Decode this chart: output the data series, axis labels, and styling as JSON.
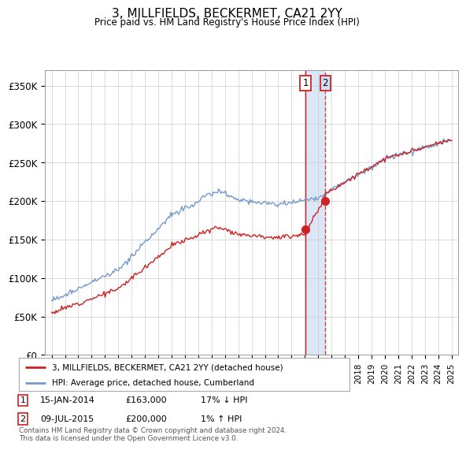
{
  "title": "3, MILLFIELDS, BECKERMET, CA21 2YY",
  "subtitle": "Price paid vs. HM Land Registry's House Price Index (HPI)",
  "ylim": [
    0,
    370000
  ],
  "yticks": [
    0,
    50000,
    100000,
    150000,
    200000,
    250000,
    300000,
    350000
  ],
  "ytick_labels": [
    "£0",
    "£50K",
    "£100K",
    "£150K",
    "£200K",
    "£250K",
    "£300K",
    "£350K"
  ],
  "sale1_date_num": 2014.04,
  "sale1_price": 163000,
  "sale2_date_num": 2015.53,
  "sale2_price": 200000,
  "sale1_text": "15-JAN-2014",
  "sale1_price_text": "£163,000",
  "sale1_hpi_text": "17% ↓ HPI",
  "sale2_text": "09-JUL-2015",
  "sale2_price_text": "£200,000",
  "sale2_hpi_text": "1% ↑ HPI",
  "hpi_line_color": "#7799cc",
  "price_line_color": "#cc2222",
  "vline1_color": "#cc2222",
  "vline2_color": "#cc4444",
  "shade_color": "#ccddf5",
  "legend_label_red": "3, MILLFIELDS, BECKERMET, CA21 2YY (detached house)",
  "legend_label_blue": "HPI: Average price, detached house, Cumberland",
  "footer": "Contains HM Land Registry data © Crown copyright and database right 2024.\nThis data is licensed under the Open Government Licence v3.0.",
  "background_color": "#ffffff",
  "grid_color": "#cccccc",
  "xlim_left": 1994.5,
  "xlim_right": 2025.5
}
